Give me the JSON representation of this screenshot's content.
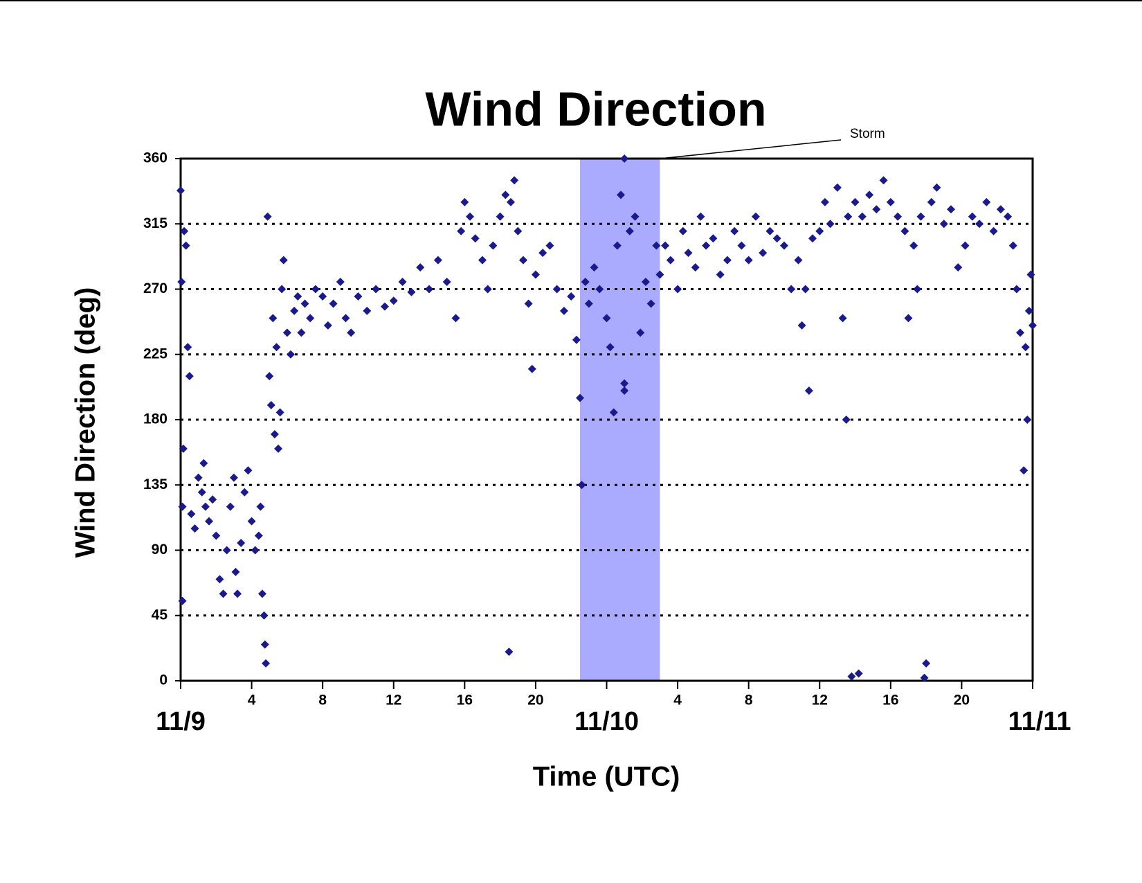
{
  "chart_data": {
    "type": "scatter",
    "title": "Wind Direction",
    "x_label": "Time (UTC)",
    "y_label": "Wind Direction (deg)",
    "xlim": [
      0,
      48
    ],
    "ylim": [
      0,
      360
    ],
    "xticks": [
      {
        "value": 0,
        "label": "11/9"
      },
      4,
      8,
      12,
      16,
      20,
      {
        "value": 24,
        "label": "11/10"
      },
      {
        "value": 28,
        "label": "4"
      },
      {
        "value": 32,
        "label": "8"
      },
      {
        "value": 36,
        "label": "12"
      },
      {
        "value": 40,
        "label": "16"
      },
      {
        "value": 44,
        "label": "20"
      },
      {
        "value": 48,
        "label": "11/11"
      }
    ],
    "yticks": [
      0,
      45,
      90,
      135,
      180,
      225,
      270,
      315,
      360
    ],
    "grid": true,
    "annotations": [
      {
        "label": "Storm",
        "x_range": [
          22.5,
          27
        ],
        "color": "#aaaaff"
      }
    ],
    "series": [
      {
        "name": "Wind Direction",
        "color": "#1a1a8c",
        "x": [
          0.0,
          0.05,
          0.1,
          0.1,
          0.15,
          0.2,
          0.3,
          0.4,
          0.5,
          0.6,
          0.8,
          1.0,
          1.2,
          1.3,
          1.4,
          1.6,
          1.8,
          2.0,
          2.2,
          2.4,
          2.6,
          2.8,
          3.0,
          3.1,
          3.2,
          3.4,
          3.6,
          3.8,
          4.0,
          4.2,
          4.4,
          4.5,
          4.6,
          4.7,
          4.75,
          4.8,
          4.9,
          5.0,
          5.1,
          5.2,
          5.3,
          5.4,
          5.5,
          5.6,
          5.7,
          5.8,
          6.0,
          6.2,
          6.4,
          6.6,
          6.8,
          7.0,
          7.3,
          7.6,
          8.0,
          8.3,
          8.6,
          9.0,
          9.3,
          9.6,
          10.0,
          10.5,
          11.0,
          11.5,
          12.0,
          12.5,
          13.0,
          13.5,
          14.0,
          14.5,
          15.0,
          15.5,
          15.8,
          16.0,
          16.3,
          16.6,
          17.0,
          17.3,
          17.6,
          18.0,
          18.3,
          18.6,
          18.8,
          18.5,
          19.0,
          19.3,
          19.6,
          19.8,
          20.0,
          20.4,
          20.8,
          21.2,
          21.6,
          22.0,
          22.3,
          22.5,
          22.6,
          22.8,
          23.0,
          23.3,
          23.6,
          24.0,
          24.2,
          24.4,
          24.6,
          25.0,
          24.8,
          25.0,
          25.0,
          25.3,
          25.6,
          25.9,
          26.2,
          26.5,
          26.8,
          27.0,
          27.3,
          27.6,
          28.0,
          28.3,
          28.6,
          29.0,
          29.3,
          29.6,
          30.0,
          30.4,
          30.8,
          31.2,
          31.6,
          32.0,
          32.4,
          32.8,
          33.2,
          33.6,
          34.0,
          34.4,
          34.8,
          35.0,
          35.2,
          35.4,
          35.6,
          36.0,
          36.3,
          36.6,
          37.0,
          37.3,
          37.6,
          37.5,
          37.8,
          38.0,
          38.2,
          38.4,
          38.8,
          39.2,
          39.6,
          40.0,
          40.4,
          40.8,
          41.0,
          41.3,
          41.5,
          41.7,
          41.9,
          42.0,
          42.3,
          42.6,
          43.0,
          43.4,
          43.8,
          44.2,
          44.6,
          45.0,
          45.4,
          45.8,
          46.2,
          46.6,
          46.9,
          47.1,
          47.3,
          47.5,
          47.6,
          47.7,
          47.8,
          48.0,
          47.9
        ],
        "values": [
          338,
          275,
          55,
          120,
          160,
          310,
          300,
          230,
          210,
          115,
          105,
          140,
          130,
          150,
          120,
          110,
          125,
          100,
          70,
          60,
          90,
          120,
          140,
          75,
          60,
          95,
          130,
          145,
          110,
          90,
          100,
          120,
          60,
          45,
          25,
          12,
          320,
          210,
          190,
          250,
          170,
          230,
          160,
          185,
          270,
          290,
          240,
          225,
          255,
          265,
          240,
          260,
          250,
          270,
          265,
          245,
          260,
          275,
          250,
          240,
          265,
          255,
          270,
          258,
          262,
          275,
          268,
          285,
          270,
          290,
          275,
          250,
          310,
          330,
          320,
          305,
          290,
          270,
          300,
          320,
          335,
          330,
          345,
          20,
          310,
          290,
          260,
          215,
          280,
          295,
          300,
          270,
          255,
          265,
          235,
          195,
          135,
          275,
          260,
          285,
          270,
          250,
          230,
          185,
          300,
          360,
          335,
          205,
          200,
          310,
          320,
          240,
          275,
          260,
          300,
          280,
          300,
          290,
          270,
          310,
          295,
          285,
          320,
          300,
          305,
          280,
          290,
          310,
          300,
          290,
          320,
          295,
          310,
          305,
          300,
          270,
          290,
          245,
          270,
          200,
          305,
          310,
          330,
          315,
          340,
          250,
          320,
          180,
          3,
          330,
          5,
          320,
          335,
          325,
          345,
          330,
          320,
          310,
          250,
          300,
          270,
          320,
          2,
          12,
          330,
          340,
          315,
          325,
          285,
          300,
          320,
          315,
          330,
          310,
          325,
          320,
          300,
          270,
          240,
          145,
          230,
          180,
          255,
          245,
          280
        ]
      }
    ]
  }
}
